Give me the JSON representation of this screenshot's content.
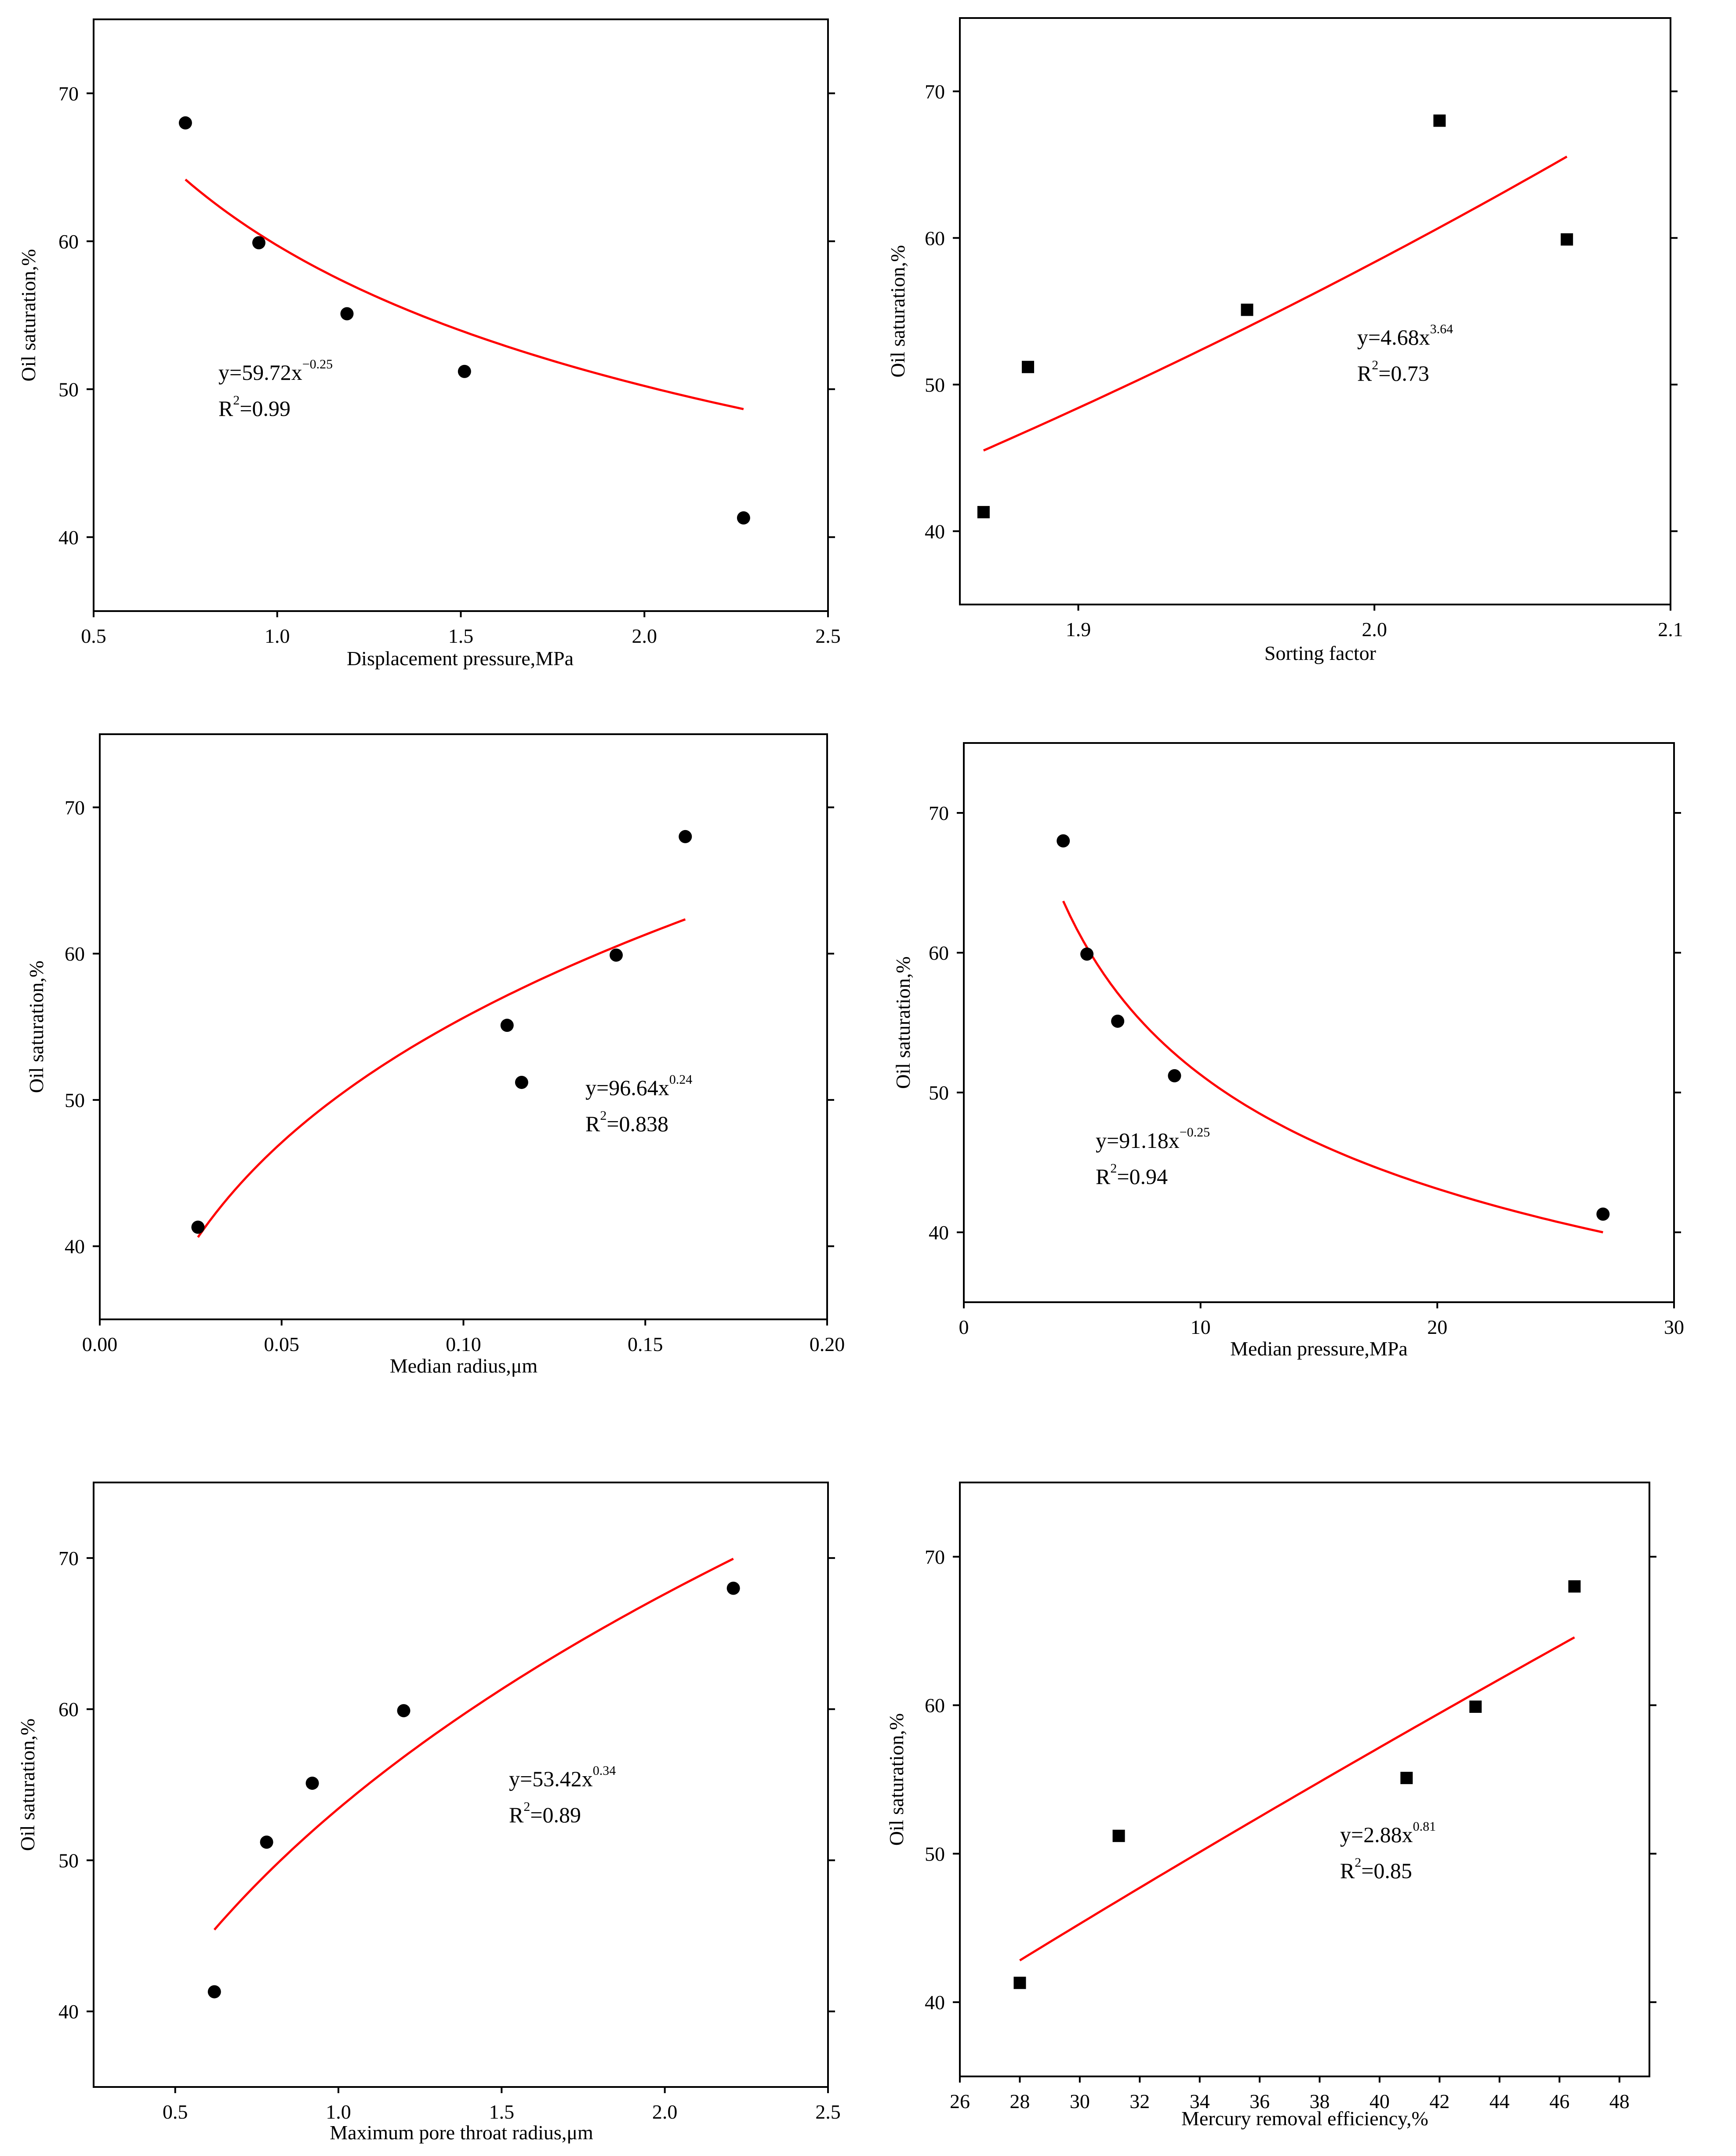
{
  "chart_data": [
    {
      "type": "scatter",
      "marker": "circle",
      "xlabel": "Displacement pressure,MPa",
      "ylabel": "Oil saturation,%",
      "xlim": [
        0.5,
        2.5
      ],
      "ylim": [
        35,
        75
      ],
      "xticks": [
        0.5,
        1.0,
        1.5,
        2.0,
        2.5
      ],
      "xtick_labels": [
        "0.5",
        "1.0",
        "1.5",
        "2.0",
        "2.5"
      ],
      "yticks": [
        40,
        50,
        60,
        70
      ],
      "ytick_labels": [
        "40",
        "50",
        "60",
        "70"
      ],
      "x": [
        0.75,
        0.95,
        1.19,
        1.51,
        2.27
      ],
      "y": [
        68.0,
        59.9,
        55.1,
        51.2,
        41.3
      ],
      "fit": {
        "a": 59.72,
        "b": -0.25,
        "x_range": [
          0.75,
          2.27
        ]
      },
      "equation": {
        "prefix": "y=59.72x",
        "exponent": "−0.25",
        "r_prefix": "R",
        "r_exp": "2",
        "r_value": "=0.99"
      }
    },
    {
      "type": "scatter",
      "marker": "square",
      "xlabel": "Sorting factor",
      "ylabel": "Oil saturation,%",
      "xlim": [
        1.86,
        2.1
      ],
      "ylim": [
        35,
        75
      ],
      "xticks": [
        1.9,
        2.0,
        2.1
      ],
      "xtick_labels": [
        "1.9",
        "2.0",
        "2.1"
      ],
      "yticks": [
        40,
        50,
        60,
        70
      ],
      "ytick_labels": [
        "40",
        "50",
        "60",
        "70"
      ],
      "x": [
        1.868,
        1.883,
        1.957,
        2.022,
        2.065
      ],
      "y": [
        41.3,
        51.2,
        55.1,
        68.0,
        59.9
      ],
      "fit": {
        "a": 4.68,
        "b": 3.64,
        "x_range": [
          1.868,
          2.065
        ]
      },
      "equation": {
        "prefix": "y=4.68x",
        "exponent": "3.64",
        "r_prefix": "R",
        "r_exp": "2",
        "r_value": "=0.73"
      }
    },
    {
      "type": "scatter",
      "marker": "circle",
      "xlabel": "Median radius,μm",
      "ylabel": "Oil saturation,%",
      "xlim": [
        0.0,
        0.2
      ],
      "ylim": [
        35,
        75
      ],
      "xticks": [
        0.0,
        0.05,
        0.1,
        0.15,
        0.2
      ],
      "xtick_labels": [
        "0.00",
        "0.05",
        "0.10",
        "0.15",
        "0.20"
      ],
      "yticks": [
        40,
        50,
        60,
        70
      ],
      "ytick_labels": [
        "40",
        "50",
        "60",
        "70"
      ],
      "x": [
        0.027,
        0.112,
        0.116,
        0.142,
        0.161
      ],
      "y": [
        41.3,
        55.1,
        51.2,
        59.9,
        68.0
      ],
      "fit": {
        "a": 96.64,
        "b": 0.24,
        "x_range": [
          0.027,
          0.161
        ]
      },
      "equation": {
        "prefix": "y=96.64x",
        "exponent": "0.24",
        "r_prefix": "R",
        "r_exp": "2",
        "r_value": "=0.838"
      }
    },
    {
      "type": "scatter",
      "marker": "circle",
      "xlabel": "Median pressure,MPa",
      "ylabel": "Oil saturation,%",
      "xlim": [
        0,
        30
      ],
      "ylim": [
        35,
        75
      ],
      "xticks": [
        0,
        10,
        20,
        30
      ],
      "xtick_labels": [
        "0",
        "10",
        "20",
        "30"
      ],
      "yticks": [
        40,
        50,
        60,
        70
      ],
      "ytick_labels": [
        "40",
        "50",
        "60",
        "70"
      ],
      "x": [
        4.2,
        5.2,
        6.5,
        8.9,
        27.0
      ],
      "y": [
        68.0,
        59.9,
        55.1,
        51.2,
        41.3
      ],
      "fit": {
        "a": 91.18,
        "b": -0.25,
        "x_range": [
          4.2,
          27.0
        ]
      },
      "equation": {
        "prefix": "y=91.18x",
        "exponent": "−0.25",
        "r_prefix": "R",
        "r_exp": "2",
        "r_value": "=0.94"
      }
    },
    {
      "type": "scatter",
      "marker": "circle",
      "xlabel": "Maximum pore throat radius,μm",
      "ylabel": "Oil saturation,%",
      "xlim": [
        0.25,
        2.5
      ],
      "ylim": [
        35,
        75
      ],
      "xticks": [
        0.5,
        1.0,
        1.5,
        2.0,
        2.5
      ],
      "xtick_labels": [
        "0.5",
        "1.0",
        "1.5",
        "2.0",
        "2.5"
      ],
      "yticks": [
        40,
        50,
        60,
        70
      ],
      "ytick_labels": [
        "40",
        "50",
        "60",
        "70"
      ],
      "x": [
        0.62,
        0.78,
        0.92,
        1.2,
        2.21
      ],
      "y": [
        41.3,
        51.2,
        55.1,
        59.9,
        68.0
      ],
      "fit": {
        "a": 53.42,
        "b": 0.34,
        "x_range": [
          0.62,
          2.21
        ]
      },
      "equation": {
        "prefix": "y=53.42x",
        "exponent": "0.34",
        "r_prefix": "R",
        "r_exp": "2",
        "r_value": "=0.89"
      }
    },
    {
      "type": "scatter",
      "marker": "square",
      "xlabel": "Mercury removal efficiency,%",
      "ylabel": "Oil saturation,%",
      "xlim": [
        26,
        49
      ],
      "ylim": [
        35,
        75
      ],
      "xticks": [
        26,
        28,
        30,
        32,
        34,
        36,
        38,
        40,
        42,
        44,
        46,
        48
      ],
      "xtick_labels": [
        "26",
        "28",
        "30",
        "32",
        "34",
        "36",
        "38",
        "40",
        "42",
        "44",
        "46",
        "48"
      ],
      "yticks": [
        40,
        50,
        60,
        70
      ],
      "ytick_labels": [
        "40",
        "50",
        "60",
        "70"
      ],
      "x": [
        28.0,
        31.3,
        40.9,
        43.2,
        46.5
      ],
      "y": [
        41.3,
        51.2,
        55.1,
        59.9,
        68.0
      ],
      "fit": {
        "a": 2.88,
        "b": 0.81,
        "x_range": [
          28.0,
          46.5
        ]
      },
      "equation": {
        "prefix": "y=2.88x",
        "exponent": "0.81",
        "r_prefix": "R",
        "r_exp": "2",
        "r_value": "=0.85"
      }
    }
  ]
}
